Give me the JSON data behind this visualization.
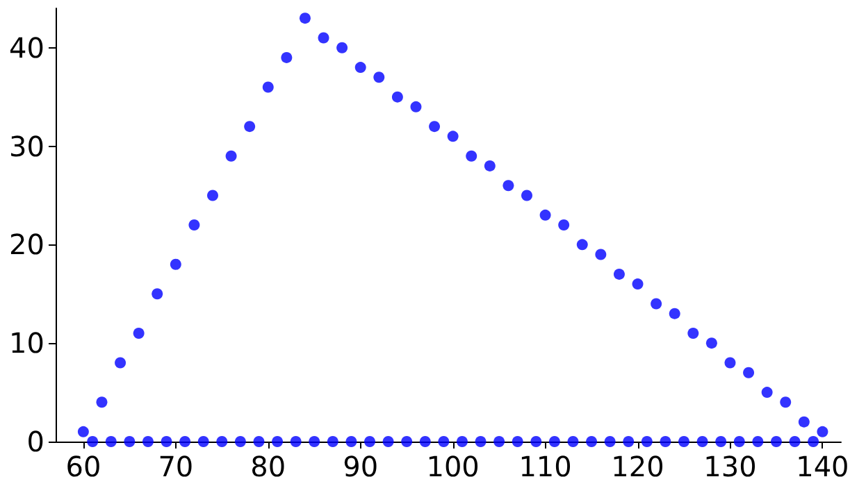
{
  "chart_data": {
    "type": "scatter",
    "color": "#0000ff",
    "marker": "circle",
    "grid": false,
    "x": [
      60,
      61,
      62,
      63,
      64,
      65,
      66,
      67,
      68,
      69,
      70,
      71,
      72,
      73,
      74,
      75,
      76,
      77,
      78,
      79,
      80,
      81,
      82,
      83,
      84,
      85,
      86,
      87,
      88,
      89,
      90,
      91,
      92,
      93,
      94,
      95,
      96,
      97,
      98,
      99,
      100,
      101,
      102,
      103,
      104,
      105,
      106,
      107,
      108,
      109,
      110,
      111,
      112,
      113,
      114,
      115,
      116,
      117,
      118,
      119,
      120,
      121,
      122,
      123,
      124,
      125,
      126,
      127,
      128,
      129,
      130,
      131,
      132,
      133,
      134,
      135,
      136,
      137,
      138,
      139,
      140
    ],
    "values": [
      1,
      0,
      4,
      0,
      8,
      0,
      11,
      0,
      15,
      0,
      18,
      0,
      22,
      0,
      25,
      0,
      29,
      0,
      32,
      0,
      36,
      0,
      39,
      0,
      43,
      0,
      41,
      0,
      40,
      0,
      38,
      0,
      37,
      0,
      35,
      0,
      34,
      0,
      32,
      0,
      31,
      0,
      29,
      0,
      28,
      0,
      26,
      0,
      25,
      0,
      23,
      0,
      22,
      0,
      20,
      0,
      19,
      0,
      17,
      0,
      16,
      0,
      14,
      0,
      13,
      0,
      11,
      0,
      10,
      0,
      8,
      0,
      7,
      0,
      5,
      0,
      4,
      0,
      2,
      0,
      1
    ],
    "xlim": [
      57,
      142
    ],
    "xticks": [
      60,
      70,
      80,
      90,
      100,
      110,
      120,
      130,
      140
    ],
    "ylim": [
      0,
      44
    ],
    "yticks": [
      0,
      10,
      20,
      30,
      40
    ]
  }
}
